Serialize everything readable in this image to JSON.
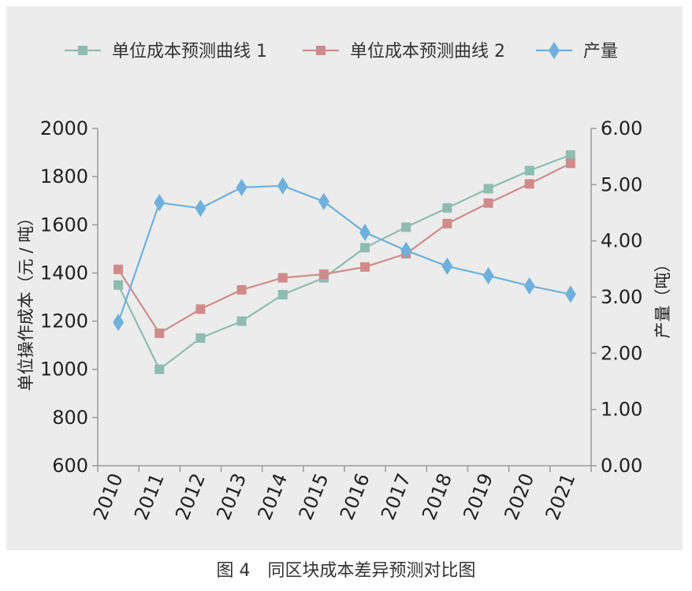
{
  "caption": "图 4　同区块成本差异预测对比图",
  "chart_data": {
    "type": "line",
    "categories": [
      "2010",
      "2011",
      "2012",
      "2013",
      "2014",
      "2015",
      "2016",
      "2017",
      "2018",
      "2019",
      "2020",
      "2021"
    ],
    "series": [
      {
        "name": "单位成本预测曲线 1",
        "axis": "left",
        "marker": "square",
        "color": "#8fbcb0",
        "values": [
          1350,
          1000,
          1130,
          1200,
          1310,
          1380,
          1505,
          1590,
          1670,
          1750,
          1825,
          1890
        ]
      },
      {
        "name": "单位成本预测曲线 2",
        "axis": "left",
        "marker": "square",
        "color": "#cf8b89",
        "values": [
          1415,
          1150,
          1250,
          1330,
          1380,
          1395,
          1425,
          1480,
          1605,
          1690,
          1770,
          1855
        ]
      },
      {
        "name": "产量",
        "axis": "right",
        "marker": "diamond",
        "color": "#6fb0dc",
        "values": [
          2.55,
          4.68,
          4.58,
          4.95,
          4.98,
          4.7,
          4.15,
          3.83,
          3.55,
          3.38,
          3.2,
          3.05
        ]
      }
    ],
    "y_left": {
      "label": "单位操作成本（元 / 吨）",
      "min": 600,
      "max": 2000,
      "step": 200,
      "ticks": [
        "600",
        "800",
        "1000",
        "1200",
        "1400",
        "1600",
        "1800",
        "2000"
      ]
    },
    "y_right": {
      "label": "产量（吨）",
      "min": 0,
      "max": 6,
      "step": 1,
      "ticks": [
        "0.00",
        "1.00",
        "2.00",
        "3.00",
        "4.00",
        "5.00",
        "6.00"
      ]
    },
    "legend_position": "top",
    "grid": false
  }
}
